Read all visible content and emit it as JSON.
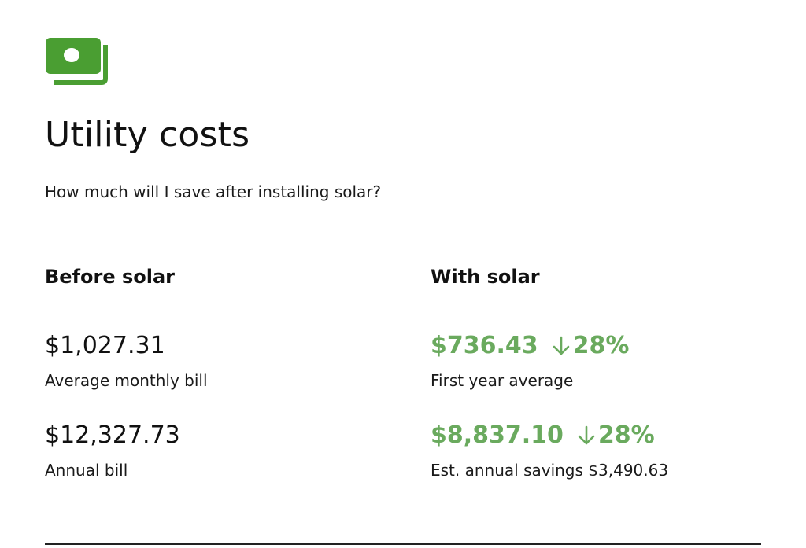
{
  "header": {
    "icon": "money-bills-icon",
    "title": "Utility costs",
    "subtitle": "How much will I save after installing solar?"
  },
  "before": {
    "heading": "Before solar",
    "monthly_value": "$1,027.31",
    "monthly_caption": "Average monthly bill",
    "annual_value": "$12,327.73",
    "annual_caption": "Annual bill"
  },
  "with": {
    "heading": "With solar",
    "monthly_value": "$736.43",
    "monthly_change": "28%",
    "monthly_caption": "First year average",
    "annual_value": "$8,837.10",
    "annual_change": "28%",
    "annual_caption": "Est. annual savings $3,490.63"
  },
  "colors": {
    "accent_green": "#4a9e32",
    "savings_green": "#6aaa5e"
  }
}
